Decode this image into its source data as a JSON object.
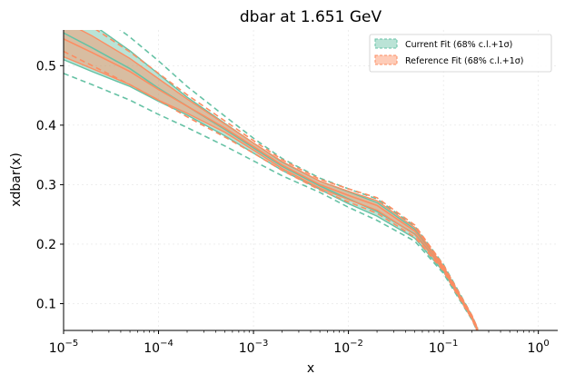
{
  "chart_data": {
    "type": "line",
    "title": "dbar at 1.651 GeV",
    "xlabel": "x",
    "ylabel": "xdbar(x)",
    "xscale": "log",
    "xlim": [
      1e-05,
      1.6
    ],
    "ylim": [
      0.055,
      0.56
    ],
    "yticks": [
      0.1,
      0.2,
      0.3,
      0.4,
      0.5
    ],
    "ytick_labels": [
      "0.1",
      "0.2",
      "0.3",
      "0.4",
      "0.5"
    ],
    "xticks": [
      1e-05,
      0.0001,
      0.001,
      0.01,
      0.1,
      1
    ],
    "xtick_labels": [
      {
        "base": "10",
        "exp": "−5"
      },
      {
        "base": "10",
        "exp": "−4"
      },
      {
        "base": "10",
        "exp": "−3"
      },
      {
        "base": "10",
        "exp": "−2"
      },
      {
        "base": "10",
        "exp": "−1"
      },
      {
        "base": "10",
        "exp": "0"
      }
    ],
    "grid": true,
    "legend_position": "top-right",
    "x": [
      1e-05,
      2e-05,
      5e-05,
      0.0001,
      0.0002,
      0.0005,
      0.001,
      0.002,
      0.005,
      0.01,
      0.02,
      0.05,
      0.1,
      0.15,
      0.2,
      0.23
    ],
    "series": [
      {
        "name": "Current Fit (68% c.l.+1σ)",
        "color": "#66c2a5",
        "central": [
          0.555,
          0.53,
          0.495,
          0.462,
          0.432,
          0.393,
          0.362,
          0.331,
          0.298,
          0.276,
          0.255,
          0.217,
          0.158,
          0.11,
          0.076,
          0.055
        ],
        "upper": [
          0.6,
          0.57,
          0.525,
          0.486,
          0.447,
          0.403,
          0.37,
          0.338,
          0.306,
          0.288,
          0.27,
          0.225,
          0.163,
          0.114,
          0.079,
          0.057
        ],
        "lower": [
          0.51,
          0.49,
          0.465,
          0.44,
          0.417,
          0.382,
          0.353,
          0.324,
          0.292,
          0.268,
          0.247,
          0.21,
          0.154,
          0.107,
          0.074,
          0.053
        ],
        "outer_upper": [
          0.625,
          0.595,
          0.548,
          0.508,
          0.465,
          0.415,
          0.378,
          0.344,
          0.311,
          0.293,
          0.276,
          0.23,
          0.166,
          0.116,
          0.08,
          0.058
        ],
        "outer_lower": [
          0.487,
          0.468,
          0.442,
          0.418,
          0.396,
          0.365,
          0.34,
          0.315,
          0.287,
          0.262,
          0.24,
          0.205,
          0.151,
          0.105,
          0.073,
          0.052
        ]
      },
      {
        "name": "Reference Fit (68% c.l.+1σ)",
        "color": "#fc8d62",
        "central": [
          0.545,
          0.522,
          0.49,
          0.46,
          0.432,
          0.395,
          0.364,
          0.333,
          0.3,
          0.282,
          0.265,
          0.222,
          0.16,
          0.111,
          0.077,
          0.055
        ],
        "upper": [
          0.575,
          0.55,
          0.512,
          0.478,
          0.444,
          0.402,
          0.37,
          0.339,
          0.306,
          0.289,
          0.273,
          0.228,
          0.163,
          0.113,
          0.079,
          0.057
        ],
        "lower": [
          0.515,
          0.495,
          0.468,
          0.442,
          0.42,
          0.388,
          0.358,
          0.327,
          0.294,
          0.275,
          0.257,
          0.216,
          0.157,
          0.109,
          0.075,
          0.053
        ],
        "outer_upper": [
          0.592,
          0.565,
          0.523,
          0.487,
          0.451,
          0.407,
          0.374,
          0.342,
          0.309,
          0.293,
          0.278,
          0.232,
          0.165,
          0.115,
          0.08,
          0.058
        ],
        "outer_lower": [
          0.524,
          0.5,
          0.468,
          0.442,
          0.414,
          0.38,
          0.353,
          0.324,
          0.291,
          0.271,
          0.252,
          0.212,
          0.155,
          0.107,
          0.074,
          0.052
        ]
      }
    ]
  }
}
